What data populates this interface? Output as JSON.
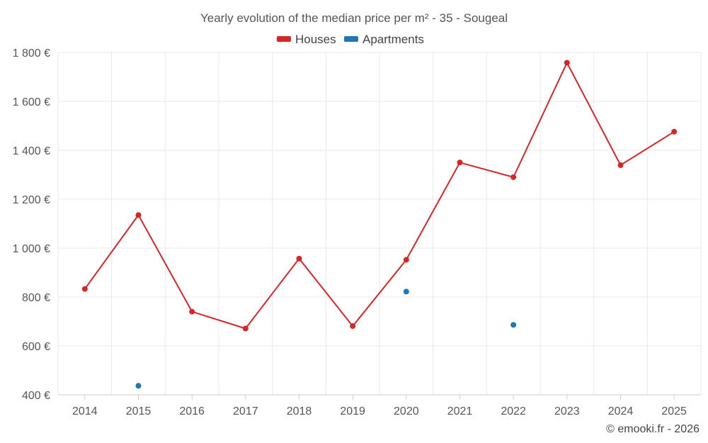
{
  "chart_data": {
    "type": "line",
    "title": "Yearly evolution of the median price per m² - 35 - Sougeal",
    "categories": [
      "2014",
      "2015",
      "2016",
      "2017",
      "2018",
      "2019",
      "2020",
      "2021",
      "2022",
      "2023",
      "2024",
      "2025"
    ],
    "series": [
      {
        "name": "Houses",
        "color": "#d62728",
        "style": "line",
        "values": [
          833,
          1135,
          740,
          671,
          957,
          681,
          952,
          1350,
          1290,
          1758,
          1339,
          1476
        ]
      },
      {
        "name": "Apartments",
        "color": "#1f77b4",
        "style": "points",
        "values": [
          null,
          437,
          null,
          null,
          null,
          null,
          822,
          null,
          686,
          null,
          null,
          null
        ]
      }
    ],
    "ylim": [
      400,
      1800
    ],
    "yticks": [
      400,
      600,
      800,
      1000,
      1200,
      1400,
      1600,
      1800
    ],
    "ytick_labels": [
      "400 €",
      "600 €",
      "800 €",
      "1 000 €",
      "1 200 €",
      "1 400 €",
      "1 600 €",
      "1 800 €"
    ],
    "xlabel": "",
    "ylabel": "",
    "grid": true,
    "legend_position": "top-center",
    "credit": "© emooki.fr - 2026"
  }
}
